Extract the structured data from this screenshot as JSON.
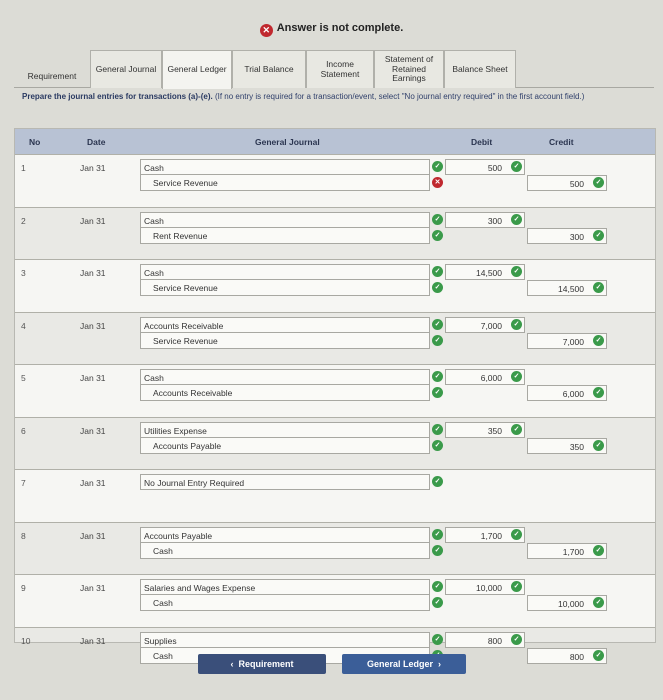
{
  "banner": {
    "text": "Answer is not complete."
  },
  "tabs": [
    {
      "label": "Requirement"
    },
    {
      "label": "General Journal"
    },
    {
      "label": "General Ledger"
    },
    {
      "label": "Trial Balance"
    },
    {
      "label": "Income Statement"
    },
    {
      "label": "Statement of Retained Earnings"
    },
    {
      "label": "Balance Sheet"
    }
  ],
  "instructions": {
    "bold": "Prepare the journal entries for transactions (a)-(e).",
    "rest": " (If no entry is required for a transaction/event, select \"No journal entry required\" in the first account field.)"
  },
  "journal": {
    "headers": {
      "no": "No",
      "date": "Date",
      "title": "General Journal",
      "debit": "Debit",
      "credit": "Credit"
    },
    "rows": [
      {
        "no": "1",
        "date": "Jan 31",
        "debit_account": "Cash",
        "credit_account": "Service Revenue",
        "debit": "500",
        "credit": "500",
        "status": [
          "ok",
          "bad"
        ]
      },
      {
        "no": "2",
        "date": "Jan 31",
        "debit_account": "Cash",
        "credit_account": "Rent Revenue",
        "debit": "300",
        "credit": "300",
        "status": [
          "ok",
          "ok"
        ]
      },
      {
        "no": "3",
        "date": "Jan 31",
        "debit_account": "Cash",
        "credit_account": "Service Revenue",
        "debit": "14,500",
        "credit": "14,500",
        "status": [
          "ok",
          "ok"
        ]
      },
      {
        "no": "4",
        "date": "Jan 31",
        "debit_account": "Accounts Receivable",
        "credit_account": "Service Revenue",
        "debit": "7,000",
        "credit": "7,000",
        "status": [
          "ok",
          "ok"
        ]
      },
      {
        "no": "5",
        "date": "Jan 31",
        "debit_account": "Cash",
        "credit_account": "Accounts Receivable",
        "debit": "6,000",
        "credit": "6,000",
        "status": [
          "ok",
          "ok"
        ]
      },
      {
        "no": "6",
        "date": "Jan 31",
        "debit_account": "Utilities Expense",
        "credit_account": "Accounts Payable",
        "debit": "350",
        "credit": "350",
        "status": [
          "ok",
          "ok"
        ]
      },
      {
        "no": "7",
        "date": "Jan 31",
        "debit_account": "No Journal Entry Required",
        "credit_account": "",
        "debit": "",
        "credit": "",
        "status": [
          "ok"
        ]
      },
      {
        "no": "8",
        "date": "Jan 31",
        "debit_account": "Accounts Payable",
        "credit_account": "Cash",
        "debit": "1,700",
        "credit": "1,700",
        "status": [
          "ok",
          "ok"
        ]
      },
      {
        "no": "9",
        "date": "Jan 31",
        "debit_account": "Salaries and Wages Expense",
        "credit_account": "Cash",
        "debit": "10,000",
        "credit": "10,000",
        "status": [
          "ok",
          "ok"
        ]
      },
      {
        "no": "10",
        "date": "Jan 31",
        "debit_account": "Supplies",
        "credit_account": "Cash",
        "debit": "800",
        "credit": "800",
        "status": [
          "ok",
          "ok"
        ]
      }
    ]
  },
  "nav": {
    "prev": "Requirement",
    "next": "General Ledger"
  }
}
